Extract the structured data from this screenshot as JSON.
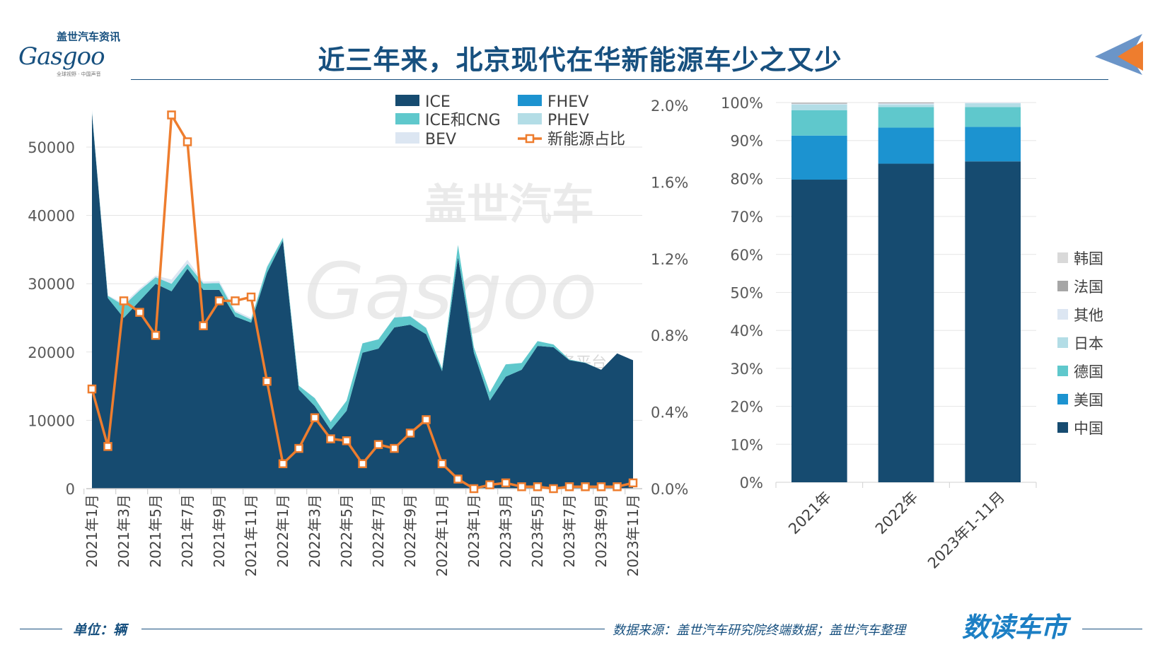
{
  "header": {
    "title": "近三年来，北京现代在华新能源车少之又少",
    "logo_cn": "盖世汽车资讯",
    "logo_en": "Gasgoo",
    "logo_tagline": "全球视野 · 中国声音"
  },
  "footer": {
    "unit": "单位：辆",
    "source": "数据来源：盖世汽车研究院终端数据；盖世汽车整理",
    "brand": "数读车市"
  },
  "watermark": {
    "cn": "盖世汽车",
    "en": "Gasgoo",
    "sub": "服务平台"
  },
  "colors": {
    "ICE": "#164b70",
    "ICE和CNG": "#5fc8cc",
    "FHEV": "#1c93d0",
    "PHEV": "#b3dde6",
    "BEV": "#dce6f2",
    "新能源占比": "#ee7d2e",
    "中国": "#164b70",
    "美国": "#1c93d0",
    "德国": "#5fc8cc",
    "日本": "#b3dde6",
    "其他": "#dce6f2",
    "法国": "#a6a6a6",
    "韩国": "#d9d9d9"
  },
  "chart_data": [
    {
      "type": "area",
      "stacked": true,
      "categories": [
        "2021年1月",
        "2021年2月",
        "2021年3月",
        "2021年4月",
        "2021年5月",
        "2021年6月",
        "2021年7月",
        "2021年8月",
        "2021年9月",
        "2021年10月",
        "2021年11月",
        "2021年12月",
        "2022年1月",
        "2022年2月",
        "2022年3月",
        "2022年4月",
        "2022年5月",
        "2022年6月",
        "2022年7月",
        "2022年8月",
        "2022年9月",
        "2022年10月",
        "2022年11月",
        "2022年12月",
        "2023年1月",
        "2023年2月",
        "2023年3月",
        "2023年4月",
        "2023年5月",
        "2023年6月",
        "2023年7月",
        "2023年8月",
        "2023年9月",
        "2023年10月",
        "2023年11月"
      ],
      "x_tick_labels": [
        "2021年1月",
        "2021年3月",
        "2021年5月",
        "2021年7月",
        "2021年9月",
        "2021年11月",
        "2022年1月",
        "2022年3月",
        "2022年5月",
        "2022年7月",
        "2022年9月",
        "2022年11月",
        "2023年1月",
        "2023年3月",
        "2023年5月",
        "2023年7月",
        "2023年9月",
        "2023年11月"
      ],
      "series": [
        {
          "name": "ICE",
          "values": [
            55000,
            27900,
            25000,
            27500,
            30000,
            28900,
            32200,
            29100,
            29100,
            25200,
            24300,
            31600,
            36300,
            14500,
            12100,
            8600,
            11400,
            19900,
            20500,
            23600,
            24000,
            22600,
            17200,
            33900,
            19900,
            12900,
            16400,
            17400,
            20900,
            20700,
            18800,
            18400,
            17400,
            19800,
            18800
          ]
        },
        {
          "name": "ICE和CNG",
          "values": [
            210,
            340,
            1830,
            1530,
            950,
            1100,
            700,
            940,
            1000,
            640,
            450,
            820,
            450,
            570,
            1150,
            1170,
            1470,
            1370,
            1350,
            1450,
            1220,
            920,
            380,
            1780,
            800,
            1200,
            1795,
            1000,
            700,
            400,
            100,
            50,
            0,
            0,
            0
          ]
        },
        {
          "name": "FHEV",
          "values": [
            0,
            0,
            0,
            0,
            0,
            0,
            0,
            0,
            0,
            0,
            0,
            0,
            0,
            0,
            0,
            0,
            0,
            0,
            0,
            0,
            0,
            0,
            0,
            0,
            0,
            0,
            0,
            0,
            0,
            0,
            0,
            0,
            0,
            0,
            0
          ]
        },
        {
          "name": "PHEV",
          "values": [
            0,
            0,
            0,
            0,
            0,
            0,
            0,
            0,
            0,
            0,
            0,
            0,
            0,
            0,
            0,
            0,
            0,
            0,
            0,
            0,
            0,
            0,
            0,
            0,
            0,
            0,
            0,
            0,
            0,
            0,
            0,
            0,
            0,
            0,
            0
          ]
        },
        {
          "name": "BEV",
          "values": [
            290,
            60,
            270,
            270,
            250,
            600,
            600,
            260,
            300,
            260,
            250,
            180,
            50,
            30,
            50,
            30,
            30,
            30,
            50,
            50,
            80,
            80,
            20,
            20,
            0,
            0,
            5,
            0,
            0,
            0,
            0,
            0,
            0,
            0,
            5
          ]
        }
      ],
      "line_series": {
        "name": "新能源占比",
        "axis": "right",
        "values": [
          0.52,
          0.22,
          0.98,
          0.92,
          0.8,
          1.95,
          1.81,
          0.85,
          0.98,
          0.98,
          1.0,
          0.56,
          0.13,
          0.21,
          0.37,
          0.26,
          0.25,
          0.13,
          0.23,
          0.21,
          0.29,
          0.36,
          0.13,
          0.05,
          0.0,
          0.02,
          0.03,
          0.01,
          0.01,
          0.0,
          0.01,
          0.01,
          0.01,
          0.01,
          0.03
        ]
      },
      "y_left": {
        "ylim": [
          0,
          55000
        ],
        "ticks": [
          "0",
          "10000",
          "20000",
          "30000",
          "40000",
          "50000"
        ]
      },
      "y_right": {
        "ylim": [
          0,
          2.0
        ],
        "ticks": [
          "0.0%",
          "0.4%",
          "0.8%",
          "1.2%",
          "1.6%",
          "2.0%"
        ]
      },
      "grid": true,
      "legend_position": "top-right",
      "legend": [
        "ICE",
        "FHEV",
        "ICE和CNG",
        "PHEV",
        "BEV",
        "新能源占比"
      ]
    },
    {
      "type": "bar",
      "stacked": true,
      "percent": true,
      "categories": [
        "2021年",
        "2022年",
        "2023年1-11月"
      ],
      "series": [
        {
          "name": "中国",
          "values": [
            79.7,
            83.9,
            84.5
          ]
        },
        {
          "name": "美国",
          "values": [
            11.6,
            9.5,
            9.1
          ]
        },
        {
          "name": "德国",
          "values": [
            6.7,
            5.4,
            5.2
          ]
        },
        {
          "name": "日本",
          "values": [
            1.5,
            0.7,
            1.0
          ]
        },
        {
          "name": "其他",
          "values": [
            0.2,
            0.3,
            0.2
          ]
        },
        {
          "name": "法国",
          "values": [
            0.2,
            0.2,
            0.0
          ]
        },
        {
          "name": "韩国",
          "values": [
            0.1,
            0.0,
            0.0
          ]
        }
      ],
      "y_ticks": [
        "0%",
        "10%",
        "20%",
        "30%",
        "40%",
        "50%",
        "60%",
        "70%",
        "80%",
        "90%",
        "100%"
      ],
      "ylim": [
        0,
        100
      ],
      "grid": true,
      "legend_position": "right",
      "legend": [
        "韩国",
        "法国",
        "其他",
        "日本",
        "德国",
        "美国",
        "中国"
      ]
    }
  ]
}
